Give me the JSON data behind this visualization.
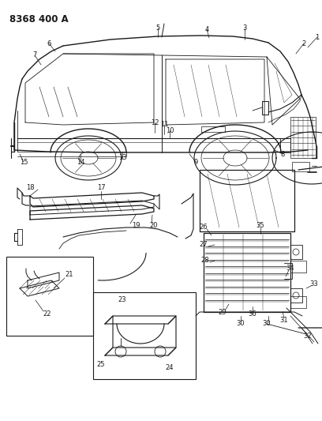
{
  "title": "8368 400 A",
  "background_color": "#ffffff",
  "fig_width": 4.08,
  "fig_height": 5.33,
  "dpi": 100,
  "line_color": "#1a1a1a",
  "label_fontsize": 6.0,
  "title_fontsize": 8.5
}
